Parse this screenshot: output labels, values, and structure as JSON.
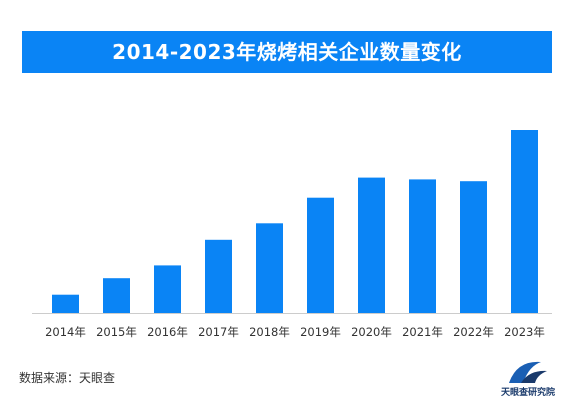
{
  "title": "2014-2023年烧烤相关企业数量变化",
  "source": "数据来源：天眼查",
  "logo_text": "天眼查研究院",
  "colors": {
    "accent": "#0a84f5",
    "bar": "#0a84f5",
    "axis": "#cccccc",
    "text": "#333333"
  },
  "chart_data": {
    "type": "bar",
    "title": "2014-2023年烧烤相关企业数量变化",
    "xlabel": "",
    "ylabel": "",
    "categories": [
      "2014年",
      "2015年",
      "2016年",
      "2017年",
      "2018年",
      "2019年",
      "2020年",
      "2021年",
      "2022年",
      "2023年"
    ],
    "values": [
      10,
      19,
      26,
      40,
      49,
      63,
      74,
      73,
      72,
      100
    ],
    "ylim": [
      0,
      100
    ],
    "value_unit": "relative height, tallest bar (2023) = 100; no numeric axis shown",
    "grid": false,
    "legend": "none"
  }
}
